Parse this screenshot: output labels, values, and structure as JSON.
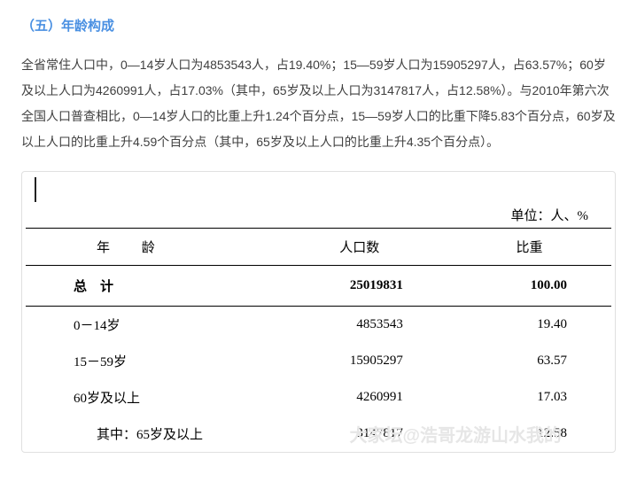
{
  "title": "（五）年龄构成",
  "paragraph": "全省常住人口中，0—14岁人口为4853543人，占19.40%；15—59岁人口为15905297人，占63.57%；60岁及以上人口为4260991人，占17.03%（其中，65岁及以上人口为3147817人，占12.58%）。与2010年第六次全国人口普查相比，0—14岁人口的比重上升1.24个百分点，15—59岁人口的比重下降5.83个百分点，60岁及以上人口的比重上升4.59个百分点（其中，65岁及以上人口的比重上升4.35个百分点）。",
  "table": {
    "unit": "单位：人、%",
    "headers": {
      "age": "年 龄",
      "pop": "人口数",
      "ratio": "比重"
    },
    "total": {
      "label": "总　计",
      "pop": "25019831",
      "ratio": "100.00"
    },
    "rows": [
      {
        "age": "0－14岁",
        "pop": "4853543",
        "ratio": "19.40",
        "indent": false
      },
      {
        "age": "15－59岁",
        "pop": "15905297",
        "ratio": "63.57",
        "indent": false
      },
      {
        "age": "60岁及以上",
        "pop": "4260991",
        "ratio": "17.03",
        "indent": false
      },
      {
        "age": "其中：65岁及以上",
        "pop": "3147817",
        "ratio": "12.58",
        "indent": true
      }
    ]
  },
  "watermark": "大家坛@浩哥龙游山水我的",
  "colors": {
    "title": "#4a90e2",
    "text": "#3a3a3a",
    "border": "#e0e0e0",
    "rule": "#000000",
    "watermark": "#e6e6e6",
    "background": "#ffffff"
  },
  "fontsizes": {
    "title": 15,
    "body": 14,
    "table": 15
  }
}
